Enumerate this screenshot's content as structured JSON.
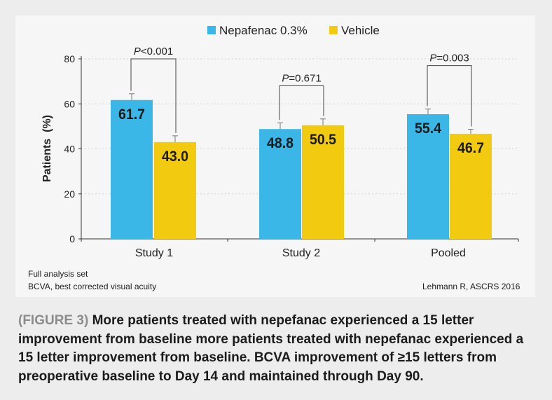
{
  "chart_data": {
    "type": "bar",
    "categories": [
      "Study 1",
      "Study 2",
      "Pooled"
    ],
    "series": [
      {
        "name": "Nepafenac 0.3%",
        "color": "#3ab7e6",
        "values": [
          61.7,
          48.8,
          55.4
        ],
        "value_labels": [
          "61.7",
          "48.8",
          "55.4"
        ],
        "error": [
          2.8,
          2.8,
          2.3
        ]
      },
      {
        "name": "Vehicle",
        "color": "#f2cb10",
        "values": [
          43.0,
          50.5,
          46.7
        ],
        "value_labels": [
          "43.0",
          "50.5",
          "46.7"
        ],
        "error": [
          2.8,
          2.8,
          2.0
        ]
      }
    ],
    "yticks": [
      "0",
      "20",
      "40",
      "60",
      "80"
    ],
    "ylim": [
      0,
      80
    ],
    "ylabel": "Patients  (%)",
    "xlabel": "",
    "grid": true,
    "legend": "top-center",
    "annotations": [
      {
        "category": "Study 1",
        "p_letter": "P",
        "p_rest": "<0.001",
        "top_value": 80
      },
      {
        "category": "Study 2",
        "p_letter": "P",
        "p_rest": "=0.671",
        "top_value": 68
      },
      {
        "category": "Pooled",
        "p_letter": "P",
        "p_rest": "=0.003",
        "top_value": 77
      }
    ]
  },
  "notes": {
    "analysis_set": "Full analysis set",
    "bcva_definition": "BCVA, best corrected visual acuity",
    "source": "Lehmann R, ASCRS 2016"
  },
  "caption": {
    "figure_label": "(FIGURE 3)",
    "text": "More patients treated with nepefanac experienced a 15 letter improvement from baseline more patients treated with nepefanac experienced a 15 letter improvement from baseline. BCVA improvement of ≥15 letters from preoperative baseline to Day 14 and maintained through Day 90."
  },
  "colors": {
    "grid": "#d3d3d3",
    "axis": "#333333",
    "bracket": "#444444",
    "text": "#222222"
  }
}
